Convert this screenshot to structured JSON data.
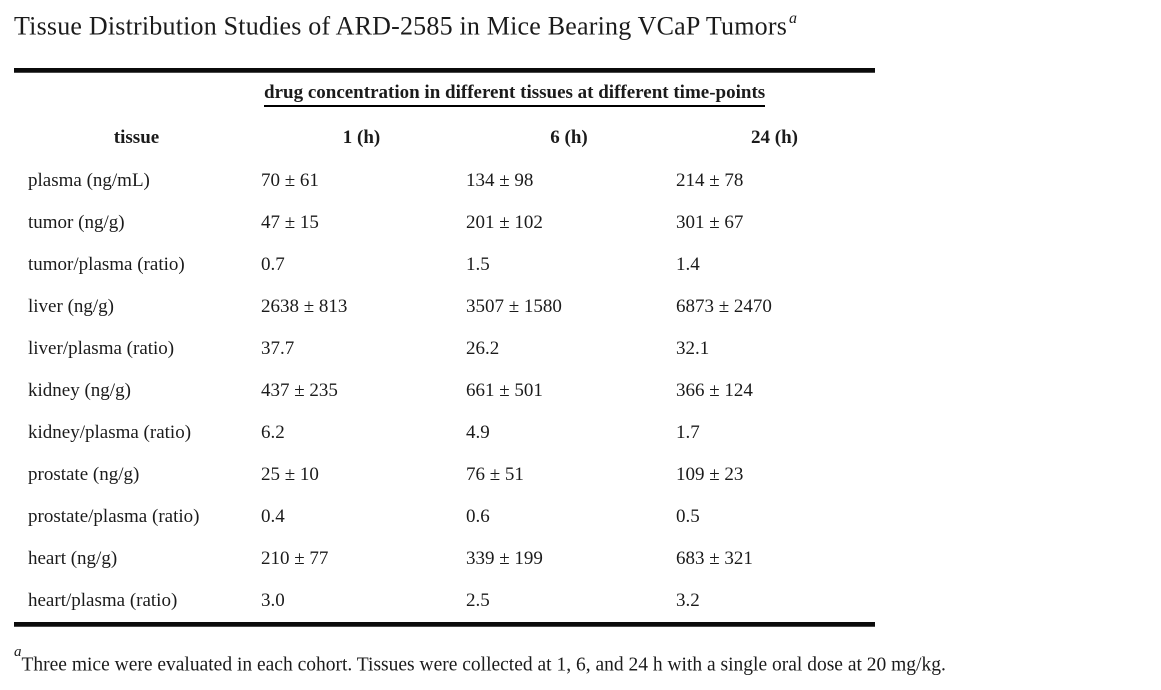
{
  "title": {
    "text": "Tissue Distribution Studies of ARD-2585 in Mice Bearing VCaP Tumors",
    "superscript": "a"
  },
  "table": {
    "span_header": "drug concentration in different tissues at different time-points",
    "columns": [
      "tissue",
      "1 (h)",
      "6 (h)",
      "24 (h)"
    ],
    "rows": [
      {
        "tissue": "plasma (ng/mL)",
        "values": [
          "70 ± 61",
          "134 ± 98",
          "214 ± 78"
        ]
      },
      {
        "tissue": "tumor (ng/g)",
        "values": [
          "47 ± 15",
          "201 ± 102",
          "301 ± 67"
        ]
      },
      {
        "tissue": "tumor/plasma (ratio)",
        "values": [
          "0.7",
          "1.5",
          "1.4"
        ]
      },
      {
        "tissue": "liver (ng/g)",
        "values": [
          "2638 ± 813",
          "3507 ± 1580",
          "6873 ± 2470"
        ]
      },
      {
        "tissue": "liver/plasma (ratio)",
        "values": [
          "37.7",
          "26.2",
          "32.1"
        ]
      },
      {
        "tissue": "kidney (ng/g)",
        "values": [
          "437 ± 235",
          "661 ± 501",
          "366 ± 124"
        ]
      },
      {
        "tissue": "kidney/plasma (ratio)",
        "values": [
          "6.2",
          "4.9",
          "1.7"
        ]
      },
      {
        "tissue": "prostate (ng/g)",
        "values": [
          "25 ± 10",
          "76 ± 51",
          "109 ± 23"
        ]
      },
      {
        "tissue": "prostate/plasma (ratio)",
        "values": [
          "0.4",
          "0.6",
          "0.5"
        ]
      },
      {
        "tissue": "heart (ng/g)",
        "values": [
          "210 ± 77",
          "339 ± 199",
          "683 ± 321"
        ]
      },
      {
        "tissue": "heart/plasma (ratio)",
        "values": [
          "3.0",
          "2.5",
          "3.2"
        ]
      }
    ]
  },
  "footnote": {
    "marker": "a",
    "text": "Three mice were evaluated in each cohort. Tissues were collected at 1, 6, and 24 h with a single oral dose at 20 mg/kg."
  },
  "colors": {
    "background": "#ffffff",
    "text": "#1b1b1b",
    "rule": "#0b0b0b"
  }
}
